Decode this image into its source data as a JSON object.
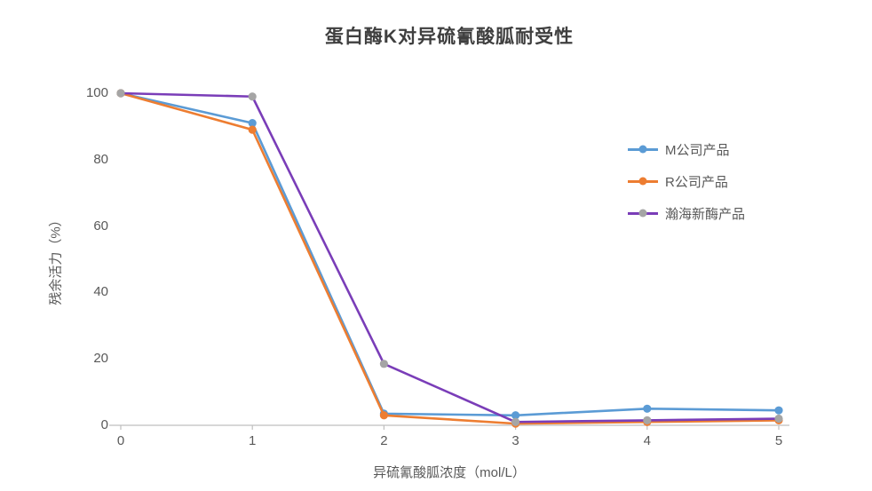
{
  "chart_data": {
    "type": "line",
    "title": "蛋白酶K对异硫氰酸胍耐受性",
    "xlabel": "异硫氰酸胍浓度（mol/L）",
    "ylabel": "残余活力（%）",
    "x": [
      0,
      1,
      2,
      3,
      4,
      5
    ],
    "ylim": [
      0,
      100
    ],
    "yticks": [
      0,
      20,
      40,
      60,
      80,
      100
    ],
    "grid": false,
    "legend_position": "right",
    "axis_color": "#bfbfbf",
    "text_color": "#595959",
    "title_color": "#3f3f3f",
    "series": [
      {
        "id": "m",
        "name": "M公司产品",
        "line_color": "#5b9bd5",
        "marker_color": "#5b9bd5",
        "values": [
          100,
          91,
          3.5,
          3,
          5,
          4.5
        ]
      },
      {
        "id": "r",
        "name": "R公司产品",
        "line_color": "#ed7d31",
        "marker_color": "#ed7d31",
        "values": [
          100,
          89,
          3,
          0.5,
          1,
          1.5
        ]
      },
      {
        "id": "hanhai",
        "name": "瀚海新酶产品",
        "line_color": "#7a3db8",
        "marker_color": "#a5a5a5",
        "values": [
          100,
          99,
          18.5,
          1,
          1.5,
          2
        ]
      }
    ]
  }
}
